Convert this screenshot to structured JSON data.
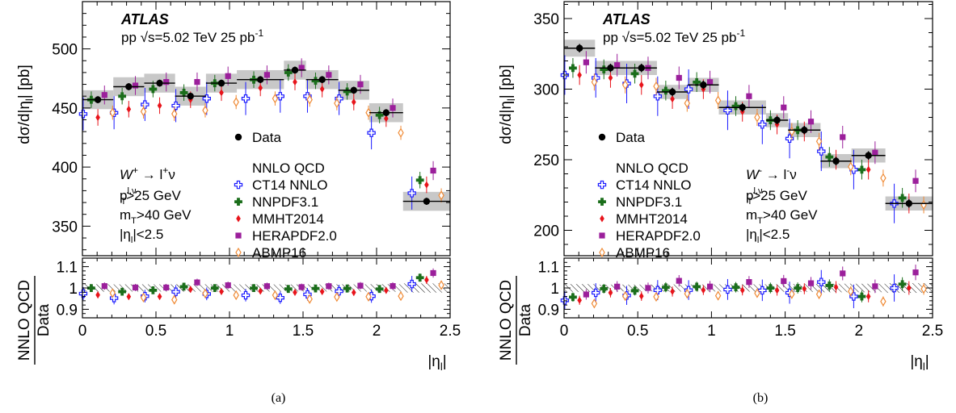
{
  "colors": {
    "data": "#000000",
    "ct14": "#1a1aff",
    "nnpdf": "#1b6e1b",
    "mmht": "#e8141b",
    "hera": "#9b1f9b",
    "abmp": "#f08a34",
    "band": "#c8c8c8"
  },
  "marker_icons": {
    "data": "filled-circle-icon",
    "ct14": "open-cross-icon",
    "nnpdf": "filled-cross-icon",
    "mmht": "filled-diamond-icon",
    "hera": "filled-square-icon",
    "abmp": "open-diamond-icon"
  },
  "chart_data": [
    {
      "type": "scatter",
      "caption": "(a)",
      "experiment": "ATLAS",
      "energy_label": "pp √s=5.02 TeV 25 pb",
      "energy_sup": "-1",
      "process": {
        "main": "W",
        "sup": "+",
        "arrow": " → l",
        "lsup": "+",
        "tail": "ν"
      },
      "cuts": [
        {
          "main": "p",
          "sub": "T",
          "sup": "l,ν",
          "tail": ">25 GeV"
        },
        {
          "main": "m",
          "sub": "T",
          "sup": "",
          "tail": ">40 GeV"
        },
        {
          "main": "|η",
          "sub": "l",
          "sup": "",
          "tail": "|<2.5"
        }
      ],
      "ylabel": {
        "text": "dσ/d|η",
        "sub": "l",
        "tail": "| [pb]"
      },
      "xlabel": {
        "text": "|η",
        "sub": "l",
        "tail": "|"
      },
      "ratio_ylabel": {
        "top": "NNLO QCD",
        "bottom": "Data"
      },
      "xlim": [
        0,
        2.5
      ],
      "ylim": [
        325,
        540
      ],
      "ratio_ylim": [
        0.86,
        1.14
      ],
      "xticks": [
        0,
        0.5,
        1,
        1.5,
        2,
        2.5
      ],
      "yticks": [
        350,
        400,
        450,
        500
      ],
      "ratio_yticks": [
        0.9,
        1,
        1.1
      ],
      "legend": {
        "data_label": "Data",
        "theory_header": "NNLO QCD",
        "entries": [
          "CT14 NNLO",
          "NNPDF3.1",
          "MMHT2014",
          "HERAPDF2.0",
          "ABMP16"
        ]
      },
      "bins": [
        0,
        0.21,
        0.42,
        0.63,
        0.84,
        1.05,
        1.37,
        1.52,
        1.74,
        1.95,
        2.18,
        2.5
      ],
      "data": [
        457,
        468,
        471,
        460,
        471,
        474,
        482,
        474,
        465,
        446,
        371
      ],
      "syst": [
        8,
        8,
        8,
        8,
        8,
        8,
        8,
        8,
        8,
        8,
        8
      ],
      "stat": [
        3,
        3,
        3,
        3,
        3,
        3,
        3,
        3,
        3,
        3,
        3
      ],
      "predictions": {
        "ct14": [
          445,
          446,
          453,
          452,
          458,
          458,
          460,
          460,
          458,
          429,
          378
        ],
        "nnpdf": [
          457,
          460,
          466,
          463,
          471,
          474,
          480,
          473,
          464,
          444,
          389
        ],
        "mmht": [
          442,
          449,
          452,
          457,
          463,
          467,
          472,
          466,
          455,
          441,
          385
        ],
        "hera": [
          461,
          469,
          472,
          472,
          477,
          478,
          484,
          478,
          470,
          450,
          397
        ],
        "abmp": [
          446,
          447,
          445,
          448,
          455,
          458,
          457,
          454,
          446,
          429,
          376
        ]
      }
    },
    {
      "type": "scatter",
      "caption": "(b)",
      "experiment": "ATLAS",
      "energy_label": "pp √s=5.02 TeV 25 pb",
      "energy_sup": "-1",
      "process": {
        "main": "W",
        "sup": "-",
        "arrow": " → l",
        "lsup": "-",
        "tail": "ν"
      },
      "cuts": [
        {
          "main": "p",
          "sub": "T",
          "sup": "l,ν",
          "tail": ">25 GeV"
        },
        {
          "main": "m",
          "sub": "T",
          "sup": "",
          "tail": ">40 GeV"
        },
        {
          "main": "|η",
          "sub": "l",
          "sup": "",
          "tail": "|<2.5"
        }
      ],
      "ylabel": {
        "text": "dσ/d|η",
        "sub": "l",
        "tail": "| [pb]"
      },
      "xlabel": {
        "text": "|η",
        "sub": "l",
        "tail": "|"
      },
      "ratio_ylabel": {
        "top": "NNLO QCD",
        "bottom": "Data"
      },
      "xlim": [
        0,
        2.5
      ],
      "ylim": [
        182,
        362
      ],
      "ratio_ylim": [
        0.86,
        1.14
      ],
      "xticks": [
        0,
        0.5,
        1,
        1.5,
        2,
        2.5
      ],
      "yticks": [
        200,
        250,
        300,
        350
      ],
      "ratio_yticks": [
        0.9,
        1,
        1.1
      ],
      "legend": {
        "data_label": "Data",
        "theory_header": "NNLO QCD",
        "entries": [
          "CT14 NNLO",
          "NNPDF3.1",
          "MMHT2014",
          "HERAPDF2.0",
          "ABMP16"
        ]
      },
      "bins": [
        0,
        0.21,
        0.42,
        0.63,
        0.84,
        1.05,
        1.37,
        1.52,
        1.74,
        1.95,
        2.18,
        2.5
      ],
      "data": [
        329,
        315,
        315,
        298,
        303,
        287,
        278,
        271,
        249,
        253,
        219
      ],
      "syst": [
        6,
        5,
        5,
        5,
        5,
        5,
        5,
        5,
        5,
        5,
        5
      ],
      "stat": [
        3,
        3,
        3,
        3,
        3,
        3,
        3,
        3,
        3,
        3,
        3
      ],
      "predictions": {
        "ct14": [
          310,
          308,
          304,
          295,
          300,
          285,
          275,
          265,
          256,
          243,
          219
        ],
        "nnpdf": [
          315,
          314,
          311,
          299,
          305,
          288,
          278,
          271,
          252,
          243,
          223
        ],
        "mmht": [
          310,
          308,
          303,
          293,
          300,
          284,
          275,
          270,
          250,
          243,
          219
        ],
        "hera": [
          319,
          317,
          315,
          308,
          305,
          295,
          287,
          277,
          266,
          255,
          235
        ],
        "abmp": [
          305,
          303,
          302,
          290,
          292,
          280,
          270,
          263,
          245,
          237,
          218
        ]
      }
    }
  ]
}
